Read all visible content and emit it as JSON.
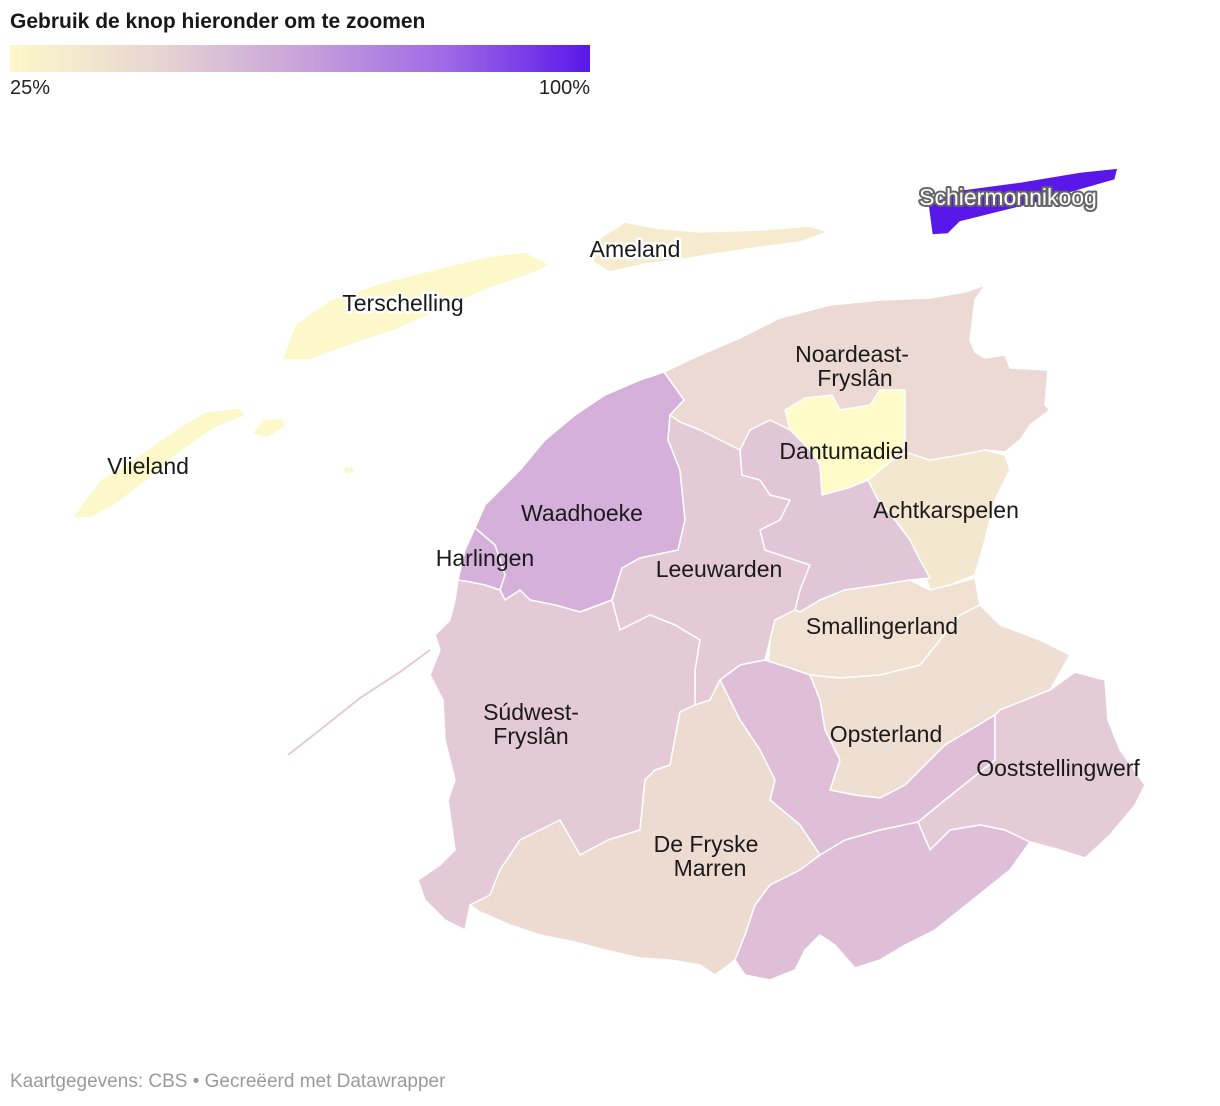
{
  "title": "Gebruik de knop hieronder om te zoomen",
  "legend": {
    "min_label": "25%",
    "max_label": "100%",
    "colors": [
      "#fdf8c9",
      "#e8d6d2",
      "#c9a3da",
      "#9e6ae6",
      "#5a17ea"
    ]
  },
  "municipalities": {
    "schiermonnikoog": {
      "name": "Schiermonnikoog",
      "color": "#5a17ea"
    },
    "ameland": {
      "name": "Ameland",
      "color": "#f7ebcf"
    },
    "terschelling": {
      "name": "Terschelling",
      "color": "#fdf8c9"
    },
    "vlieland": {
      "name": "Vlieland",
      "color": "#fdf8c9"
    },
    "noardeast": {
      "name": "Noardeast-",
      "name2": "Fryslân",
      "color": "#ecd9d3"
    },
    "dantumadiel": {
      "name": "Dantumadiel",
      "color": "#fefbc8"
    },
    "achtkarspelen": {
      "name": "Achtkarspelen",
      "color": "#f3e7d0"
    },
    "waadhoeke": {
      "name": "Waadhoeke",
      "color": "#d4b0da"
    },
    "harlingen": {
      "name": "Harlingen",
      "color": "#d4b0da"
    },
    "leeuwarden": {
      "name": "Leeuwarden",
      "color": "#e4cad6"
    },
    "tytsjerksteradiel": {
      "color": "#e1c6d8"
    },
    "smallingerland": {
      "name": "Smallingerland",
      "color": "#f0e1d2"
    },
    "sudwest": {
      "name": "Súdwest-",
      "name2": "Fryslân",
      "color": "#e4cad6"
    },
    "opsterland": {
      "name": "Opsterland",
      "color": "#efdfd3"
    },
    "heerenveen": {
      "color": "#dfbfd8"
    },
    "ooststellingwerf": {
      "name": "Ooststellingwerf",
      "color": "#e4cbd5"
    },
    "defryske": {
      "name": "De Fryske",
      "name2": "Marren",
      "color": "#eddbd2"
    },
    "weststellingwerf": {
      "color": "#dfbfd8"
    }
  },
  "footer": "Kaartgegevens: CBS • Gecreëerd met Datawrapper"
}
